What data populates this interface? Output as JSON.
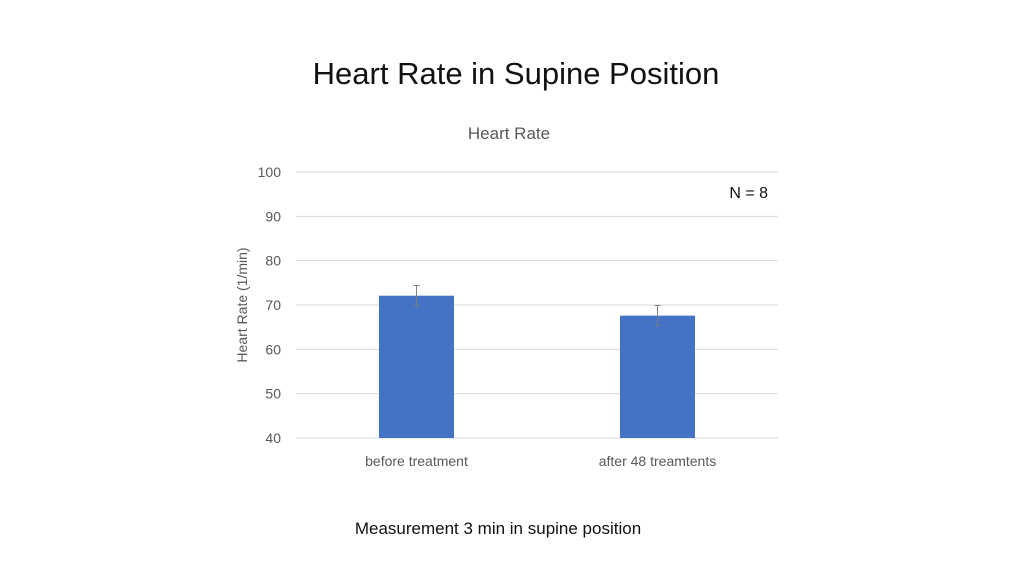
{
  "slide": {
    "title": "Heart Rate in Supine Position",
    "caption": "Measurement 3 min in supine position"
  },
  "chart_data": {
    "type": "bar",
    "title": "Heart Rate",
    "xlabel": "",
    "ylabel": "Heart Rate (1/min)",
    "categories": [
      "before treatment",
      "after 48 treamtents"
    ],
    "series": [
      {
        "values": [
          72.1,
          67.6
        ],
        "error": [
          2.3,
          2.3
        ]
      }
    ],
    "ylim": [
      40,
      100
    ],
    "yticks": [
      40,
      50,
      60,
      70,
      80,
      90,
      100
    ],
    "grid": true,
    "annotation": "N = 8",
    "bar_color": "#4472C4",
    "error_color": "#7f7f7f",
    "grid_color": "#d9d9d9"
  }
}
